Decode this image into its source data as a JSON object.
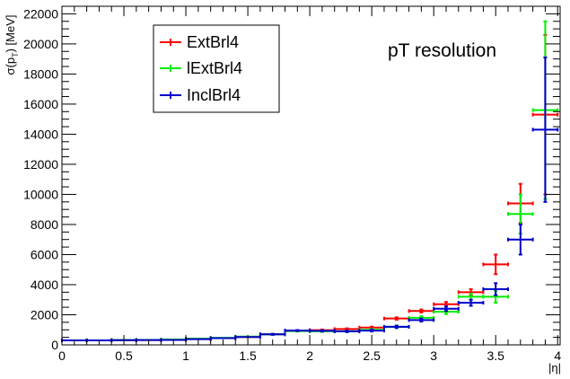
{
  "chart_data": {
    "type": "scatter",
    "annotation": "pT resolution",
    "xlabel": "|η|",
    "ylabel": "σ(p_T) [MeV]",
    "xlim": [
      0,
      4.02
    ],
    "ylim": [
      0,
      22500
    ],
    "x_ticks": [
      0,
      0.5,
      1,
      1.5,
      2,
      2.5,
      3,
      3.5,
      4
    ],
    "x_tick_labels": [
      "0",
      "0.5",
      "1",
      "1.5",
      "2",
      "2.5",
      "3",
      "3.5",
      "4"
    ],
    "y_ticks": [
      0,
      2000,
      4000,
      6000,
      8000,
      10000,
      12000,
      14000,
      16000,
      18000,
      20000,
      22000
    ],
    "y_tick_labels": [
      "0",
      "2000",
      "4000",
      "6000",
      "8000",
      "10000",
      "12000",
      "14000",
      "16000",
      "18000",
      "20000",
      "22000"
    ],
    "grid": false,
    "legend_position": "top-left",
    "series": [
      {
        "name": "ExtBrl4",
        "color": "#ff0000",
        "points": [
          {
            "x": 0.1,
            "xerr": 0.1,
            "y": 300,
            "yerr": 15
          },
          {
            "x": 0.3,
            "xerr": 0.1,
            "y": 300,
            "yerr": 15
          },
          {
            "x": 0.5,
            "xerr": 0.1,
            "y": 310,
            "yerr": 15
          },
          {
            "x": 0.7,
            "xerr": 0.1,
            "y": 320,
            "yerr": 15
          },
          {
            "x": 0.9,
            "xerr": 0.1,
            "y": 340,
            "yerr": 20
          },
          {
            "x": 1.1,
            "xerr": 0.1,
            "y": 400,
            "yerr": 20
          },
          {
            "x": 1.3,
            "xerr": 0.1,
            "y": 450,
            "yerr": 25
          },
          {
            "x": 1.5,
            "xerr": 0.1,
            "y": 520,
            "yerr": 25
          },
          {
            "x": 1.7,
            "xerr": 0.1,
            "y": 700,
            "yerr": 30
          },
          {
            "x": 1.9,
            "xerr": 0.1,
            "y": 950,
            "yerr": 35
          },
          {
            "x": 2.1,
            "xerr": 0.1,
            "y": 980,
            "yerr": 40
          },
          {
            "x": 2.3,
            "xerr": 0.1,
            "y": 1050,
            "yerr": 50
          },
          {
            "x": 2.5,
            "xerr": 0.1,
            "y": 1150,
            "yerr": 60
          },
          {
            "x": 2.7,
            "xerr": 0.1,
            "y": 1750,
            "yerr": 80
          },
          {
            "x": 2.9,
            "xerr": 0.1,
            "y": 2250,
            "yerr": 100
          },
          {
            "x": 3.1,
            "xerr": 0.1,
            "y": 2700,
            "yerr": 150
          },
          {
            "x": 3.3,
            "xerr": 0.1,
            "y": 3500,
            "yerr": 200
          },
          {
            "x": 3.5,
            "xerr": 0.1,
            "y": 5350,
            "yerr": 650
          },
          {
            "x": 3.7,
            "xerr": 0.1,
            "y": 9400,
            "yerr": 1300
          },
          {
            "x": 3.9,
            "xerr": 0.1,
            "y": 15300,
            "yerr": 5300
          }
        ]
      },
      {
        "name": "lExtBrl4",
        "color": "#00ee00",
        "points": [
          {
            "x": 0.1,
            "xerr": 0.1,
            "y": 300,
            "yerr": 15
          },
          {
            "x": 0.3,
            "xerr": 0.1,
            "y": 300,
            "yerr": 15
          },
          {
            "x": 0.5,
            "xerr": 0.1,
            "y": 320,
            "yerr": 15
          },
          {
            "x": 0.7,
            "xerr": 0.1,
            "y": 330,
            "yerr": 15
          },
          {
            "x": 0.9,
            "xerr": 0.1,
            "y": 360,
            "yerr": 20
          },
          {
            "x": 1.1,
            "xerr": 0.1,
            "y": 410,
            "yerr": 20
          },
          {
            "x": 1.3,
            "xerr": 0.1,
            "y": 470,
            "yerr": 25
          },
          {
            "x": 1.5,
            "xerr": 0.1,
            "y": 550,
            "yerr": 25
          },
          {
            "x": 1.7,
            "xerr": 0.1,
            "y": 700,
            "yerr": 30
          },
          {
            "x": 1.9,
            "xerr": 0.1,
            "y": 920,
            "yerr": 35
          },
          {
            "x": 2.1,
            "xerr": 0.1,
            "y": 900,
            "yerr": 40
          },
          {
            "x": 2.3,
            "xerr": 0.1,
            "y": 900,
            "yerr": 50
          },
          {
            "x": 2.5,
            "xerr": 0.1,
            "y": 1000,
            "yerr": 60
          },
          {
            "x": 2.7,
            "xerr": 0.1,
            "y": 1200,
            "yerr": 80
          },
          {
            "x": 2.9,
            "xerr": 0.1,
            "y": 1800,
            "yerr": 100
          },
          {
            "x": 3.1,
            "xerr": 0.1,
            "y": 2200,
            "yerr": 150
          },
          {
            "x": 3.3,
            "xerr": 0.1,
            "y": 3200,
            "yerr": 200
          },
          {
            "x": 3.5,
            "xerr": 0.1,
            "y": 3200,
            "yerr": 400
          },
          {
            "x": 3.7,
            "xerr": 0.1,
            "y": 8700,
            "yerr": 1300
          },
          {
            "x": 3.9,
            "xerr": 0.1,
            "y": 15600,
            "yerr": 5900
          }
        ]
      },
      {
        "name": "InclBrl4",
        "color": "#0000cc",
        "points": [
          {
            "x": 0.1,
            "xerr": 0.1,
            "y": 300,
            "yerr": 15
          },
          {
            "x": 0.3,
            "xerr": 0.1,
            "y": 300,
            "yerr": 15
          },
          {
            "x": 0.5,
            "xerr": 0.1,
            "y": 310,
            "yerr": 15
          },
          {
            "x": 0.7,
            "xerr": 0.1,
            "y": 320,
            "yerr": 15
          },
          {
            "x": 0.9,
            "xerr": 0.1,
            "y": 330,
            "yerr": 20
          },
          {
            "x": 1.1,
            "xerr": 0.1,
            "y": 380,
            "yerr": 20
          },
          {
            "x": 1.3,
            "xerr": 0.1,
            "y": 450,
            "yerr": 25
          },
          {
            "x": 1.5,
            "xerr": 0.1,
            "y": 520,
            "yerr": 25
          },
          {
            "x": 1.7,
            "xerr": 0.1,
            "y": 700,
            "yerr": 30
          },
          {
            "x": 1.9,
            "xerr": 0.1,
            "y": 950,
            "yerr": 35
          },
          {
            "x": 2.1,
            "xerr": 0.1,
            "y": 930,
            "yerr": 40
          },
          {
            "x": 2.3,
            "xerr": 0.1,
            "y": 900,
            "yerr": 50
          },
          {
            "x": 2.5,
            "xerr": 0.1,
            "y": 950,
            "yerr": 60
          },
          {
            "x": 2.7,
            "xerr": 0.1,
            "y": 1200,
            "yerr": 80
          },
          {
            "x": 2.9,
            "xerr": 0.1,
            "y": 1650,
            "yerr": 100
          },
          {
            "x": 3.1,
            "xerr": 0.1,
            "y": 2400,
            "yerr": 150
          },
          {
            "x": 3.3,
            "xerr": 0.1,
            "y": 2800,
            "yerr": 200
          },
          {
            "x": 3.5,
            "xerr": 0.1,
            "y": 3700,
            "yerr": 400
          },
          {
            "x": 3.7,
            "xerr": 0.1,
            "y": 7000,
            "yerr": 1000
          },
          {
            "x": 3.9,
            "xerr": 0.1,
            "y": 14300,
            "yerr": 4800
          }
        ]
      }
    ]
  }
}
